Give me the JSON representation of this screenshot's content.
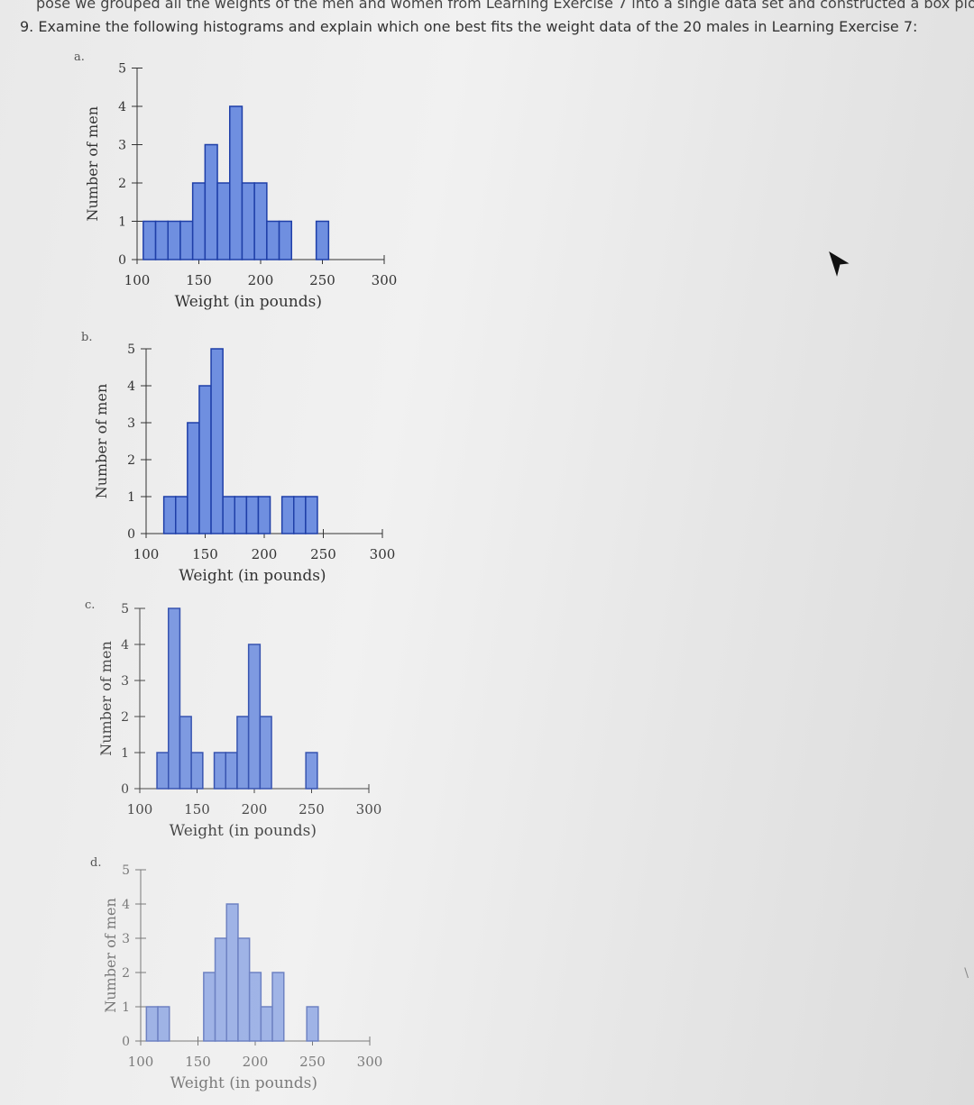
{
  "header": {
    "context_line": "pose we grouped all the weights of the men and women from Learning Exercise 7 into a single data set and constructed a box plot. D",
    "question": "9. Examine the following histograms and explain which one best fits the weight data of the 20 males in Learning Exercise 7:"
  },
  "colors": {
    "bar_fill": "#6f8fe0",
    "bar_stroke": "#1f3fa8",
    "axis": "#333333"
  },
  "chart_data": [
    {
      "panel": "a.",
      "type": "bar",
      "xlabel": "Weight (in pounds)",
      "ylabel": "Number of men",
      "xticks": [
        "100",
        "150",
        "200",
        "250",
        "300"
      ],
      "yticks": [
        "0",
        "1",
        "2",
        "3",
        "4",
        "5"
      ],
      "xlim": [
        100,
        300
      ],
      "ylim": [
        0,
        5
      ],
      "bins": [
        {
          "x": 110,
          "count": 1
        },
        {
          "x": 120,
          "count": 1
        },
        {
          "x": 130,
          "count": 1
        },
        {
          "x": 140,
          "count": 1
        },
        {
          "x": 150,
          "count": 2
        },
        {
          "x": 160,
          "count": 3
        },
        {
          "x": 170,
          "count": 2
        },
        {
          "x": 180,
          "count": 4
        },
        {
          "x": 190,
          "count": 2
        },
        {
          "x": 200,
          "count": 2
        },
        {
          "x": 210,
          "count": 1
        },
        {
          "x": 220,
          "count": 1
        },
        {
          "x": 250,
          "count": 1
        }
      ]
    },
    {
      "panel": "b.",
      "type": "bar",
      "xlabel": "Weight (in pounds)",
      "ylabel": "Number of men",
      "xticks": [
        "100",
        "150",
        "200",
        "250",
        "300"
      ],
      "yticks": [
        "0",
        "1",
        "2",
        "3",
        "4",
        "5"
      ],
      "xlim": [
        100,
        300
      ],
      "ylim": [
        0,
        5
      ],
      "bins": [
        {
          "x": 120,
          "count": 1
        },
        {
          "x": 130,
          "count": 1
        },
        {
          "x": 140,
          "count": 3
        },
        {
          "x": 150,
          "count": 4
        },
        {
          "x": 160,
          "count": 5
        },
        {
          "x": 170,
          "count": 1
        },
        {
          "x": 180,
          "count": 1
        },
        {
          "x": 190,
          "count": 1
        },
        {
          "x": 200,
          "count": 1
        },
        {
          "x": 220,
          "count": 1
        },
        {
          "x": 230,
          "count": 1
        },
        {
          "x": 240,
          "count": 1
        }
      ]
    },
    {
      "panel": "c.",
      "type": "bar",
      "xlabel": "Weight (in pounds)",
      "ylabel": "Number of men",
      "xticks": [
        "100",
        "150",
        "200",
        "250",
        "300"
      ],
      "yticks": [
        "0",
        "1",
        "2",
        "3",
        "4",
        "5"
      ],
      "xlim": [
        100,
        300
      ],
      "ylim": [
        0,
        5
      ],
      "bins": [
        {
          "x": 120,
          "count": 1
        },
        {
          "x": 130,
          "count": 5
        },
        {
          "x": 140,
          "count": 2
        },
        {
          "x": 150,
          "count": 1
        },
        {
          "x": 170,
          "count": 1
        },
        {
          "x": 180,
          "count": 1
        },
        {
          "x": 190,
          "count": 2
        },
        {
          "x": 200,
          "count": 4
        },
        {
          "x": 210,
          "count": 2
        },
        {
          "x": 250,
          "count": 1
        }
      ]
    },
    {
      "panel": "d.",
      "type": "bar",
      "xlabel": "Weight (in pounds)",
      "ylabel": "Number of men",
      "xticks": [
        "100",
        "150",
        "200",
        "250",
        "300"
      ],
      "yticks": [
        "0",
        "1",
        "2",
        "3",
        "4",
        "5"
      ],
      "xlim": [
        100,
        300
      ],
      "ylim": [
        0,
        5
      ],
      "bins": [
        {
          "x": 110,
          "count": 1
        },
        {
          "x": 120,
          "count": 1
        },
        {
          "x": 160,
          "count": 2
        },
        {
          "x": 170,
          "count": 3
        },
        {
          "x": 180,
          "count": 4
        },
        {
          "x": 190,
          "count": 3
        },
        {
          "x": 200,
          "count": 2
        },
        {
          "x": 210,
          "count": 1
        },
        {
          "x": 220,
          "count": 2
        },
        {
          "x": 250,
          "count": 1
        }
      ]
    }
  ]
}
